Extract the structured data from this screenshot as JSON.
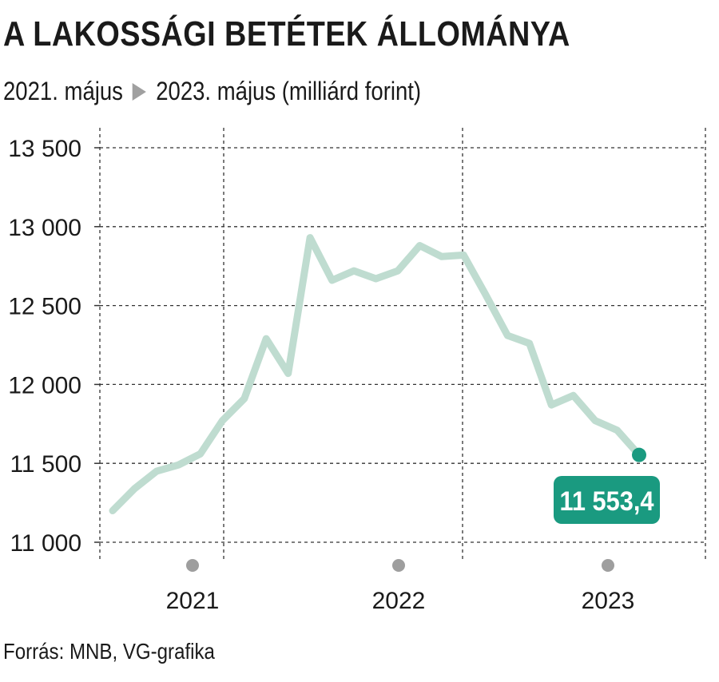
{
  "header": {
    "title": "A LAKOSSÁGI BETÉTEK ÁLLOMÁNYA",
    "subtitle_from": "2021. május",
    "subtitle_to": "2023. május (milliárd forint)"
  },
  "footer": {
    "source": "Forrás: MNB, VG-grafika"
  },
  "colors": {
    "line": "#bfdcd0",
    "accent": "#1a9a80",
    "grid": "#333333",
    "year_dot": "#9e9e9e"
  },
  "chart_data": {
    "type": "line",
    "title": "A LAKOSSÁGI BETÉTEK ÁLLOMÁNYA",
    "subtitle": "2021. május ▶ 2023. május (milliárd forint)",
    "ylim": [
      11000,
      13500
    ],
    "yticks": [
      11000,
      11500,
      12000,
      12500,
      13000,
      13500
    ],
    "ytick_labels": [
      "11 000",
      "11 500",
      "12 000",
      "12 500",
      "13 000",
      "13 500"
    ],
    "xticks": [
      "2021",
      "2022",
      "2023"
    ],
    "grid": true,
    "values": [
      11200,
      11340,
      11450,
      11490,
      11560,
      11770,
      11910,
      12290,
      12070,
      12930,
      12660,
      12720,
      12670,
      12720,
      12880,
      12810,
      12820,
      12570,
      12310,
      12260,
      11870,
      11930,
      11770,
      11710,
      11553.4
    ],
    "last_value_label": "11 553,4"
  }
}
